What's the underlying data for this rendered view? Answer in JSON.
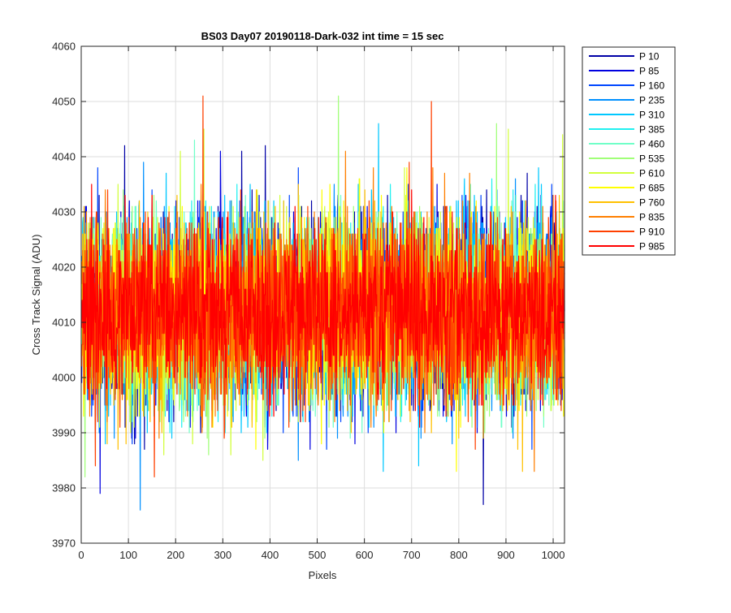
{
  "chart_data": {
    "type": "line",
    "title": "BS03 Day07 20190118-Dark-032 int time = 15 sec",
    "xlabel": "Pixels",
    "ylabel": "Cross Track Signal (ADU)",
    "xlim": [
      0,
      1024
    ],
    "ylim": [
      3970,
      4060
    ],
    "x_ticks": [
      0,
      100,
      200,
      300,
      400,
      500,
      600,
      700,
      800,
      900,
      1000
    ],
    "y_ticks": [
      3970,
      3980,
      3990,
      4000,
      4010,
      4020,
      4030,
      4040,
      4050,
      4060
    ],
    "grid": true,
    "legend_position": "outside-top-right",
    "x_range": [
      1,
      1024
    ],
    "series": [
      {
        "name": "P 10",
        "color": "#0000a6",
        "mean": 4012,
        "std": 8.5,
        "seed": 11,
        "peaks": [
          [
            92,
            4042
          ],
          [
            340,
            4041
          ],
          [
            390,
            4042
          ],
          [
            852,
            3977
          ]
        ]
      },
      {
        "name": "P 85",
        "color": "#0000e0",
        "mean": 4012,
        "std": 8.5,
        "seed": 23,
        "peaks": [
          [
            40,
            3979
          ],
          [
            295,
            4041
          ],
          [
            395,
            3987
          ],
          [
            580,
            3988
          ]
        ]
      },
      {
        "name": "P 160",
        "color": "#0046ff",
        "mean": 4012,
        "std": 8.5,
        "seed": 37,
        "peaks": [
          [
            35,
            4038
          ],
          [
            460,
            4038
          ],
          [
            520,
            3987
          ],
          [
            955,
            3987
          ]
        ]
      },
      {
        "name": "P 235",
        "color": "#0090ff",
        "mean": 4012,
        "std": 8.5,
        "seed": 41,
        "peaks": [
          [
            125,
            3976
          ],
          [
            132,
            4039
          ],
          [
            460,
            3985
          ],
          [
            720,
            3989
          ]
        ]
      },
      {
        "name": "P 310",
        "color": "#00c8ff",
        "mean": 4012,
        "std": 8.5,
        "seed": 53,
        "peaks": [
          [
            630,
            4046
          ],
          [
            640,
            3983
          ],
          [
            715,
            3984
          ],
          [
            180,
            4037
          ]
        ]
      },
      {
        "name": "P 385",
        "color": "#20f0f0",
        "mean": 4012,
        "std": 8.5,
        "seed": 67,
        "peaks": [
          [
            330,
            4035
          ],
          [
            610,
            3991
          ],
          [
            870,
            4036
          ]
        ]
      },
      {
        "name": "P 460",
        "color": "#70ffc8",
        "mean": 4012,
        "std": 8.5,
        "seed": 71,
        "peaks": [
          [
            240,
            4043
          ],
          [
            825,
            4035
          ],
          [
            980,
            3991
          ]
        ]
      },
      {
        "name": "P 535",
        "color": "#a0ff78",
        "mean": 4012,
        "std": 8.5,
        "seed": 83,
        "peaks": [
          [
            545,
            4051
          ],
          [
            880,
            4046
          ],
          [
            8,
            3982
          ],
          [
            270,
            3986
          ]
        ]
      },
      {
        "name": "P 610",
        "color": "#d2ff3c",
        "mean": 4012,
        "std": 8.5,
        "seed": 97,
        "peaks": [
          [
            210,
            4041
          ],
          [
            260,
            4045
          ],
          [
            905,
            4045
          ],
          [
            1020,
            4044
          ]
        ]
      },
      {
        "name": "P 685",
        "color": "#ffff00",
        "mean": 4012,
        "std": 8.5,
        "seed": 101,
        "peaks": [
          [
            795,
            3983
          ],
          [
            370,
            3987
          ],
          [
            690,
            4038
          ]
        ]
      },
      {
        "name": "P 760",
        "color": "#ffc000",
        "mean": 4012,
        "std": 8.5,
        "seed": 113,
        "peaks": [
          [
            925,
            3987
          ],
          [
            935,
            3983
          ],
          [
            55,
            3988
          ]
        ]
      },
      {
        "name": "P 835",
        "color": "#ff7f00",
        "mean": 4012,
        "std": 8.5,
        "seed": 127,
        "peaks": [
          [
            560,
            4041
          ],
          [
            745,
            4038
          ],
          [
            770,
            4037
          ],
          [
            960,
            3983
          ]
        ]
      },
      {
        "name": "P 910",
        "color": "#ff4000",
        "mean": 4012,
        "std": 8.5,
        "seed": 131,
        "peaks": [
          [
            258,
            4051
          ],
          [
            742,
            4050
          ],
          [
            155,
            3982
          ],
          [
            30,
            3984
          ]
        ]
      },
      {
        "name": "P 985",
        "color": "#ff0000",
        "mean": 4012,
        "std": 7.5,
        "seed": 139,
        "peaks": [
          [
            22,
            4035
          ],
          [
            150,
            4033
          ],
          [
            700,
            4034
          ],
          [
            1005,
            4033
          ]
        ]
      }
    ]
  }
}
